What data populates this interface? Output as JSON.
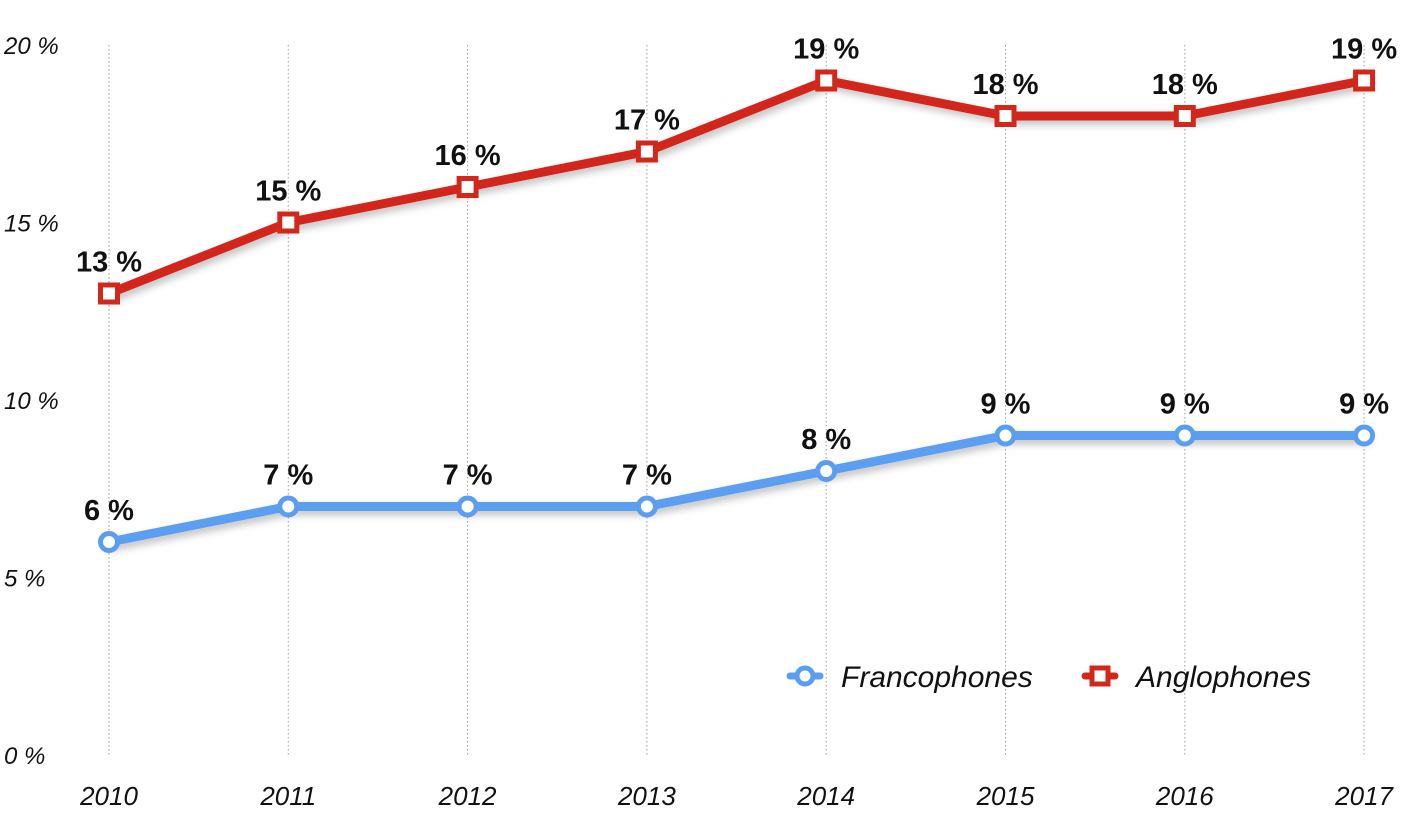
{
  "chart_data": {
    "type": "line",
    "title": "",
    "xlabel": "",
    "ylabel": "",
    "categories": [
      "2010",
      "2011",
      "2012",
      "2013",
      "2014",
      "2015",
      "2016",
      "2017"
    ],
    "ylim": [
      0,
      20
    ],
    "yticks": [
      0,
      5,
      10,
      15,
      20
    ],
    "ytick_labels": [
      "0 %",
      "5 %",
      "10 %",
      "15 %",
      "20 %"
    ],
    "grid": "vertical dotted",
    "legend_position": "bottom-right",
    "series": [
      {
        "name": "Francophones",
        "values": [
          6,
          7,
          7,
          7,
          8,
          9,
          9,
          9
        ],
        "labels": [
          "6 %",
          "7 %",
          "7 %",
          "7 %",
          "8 %",
          "9 %",
          "9 %",
          "9 %"
        ],
        "color": "#5B9EF0",
        "marker": "circle"
      },
      {
        "name": "Anglophones",
        "values": [
          13,
          15,
          16,
          17,
          19,
          18,
          18,
          19
        ],
        "labels": [
          "13 %",
          "15 %",
          "16 %",
          "17 %",
          "19 %",
          "18 %",
          "18 %",
          "19 %"
        ],
        "color": "#D2281B",
        "marker": "square"
      }
    ]
  }
}
